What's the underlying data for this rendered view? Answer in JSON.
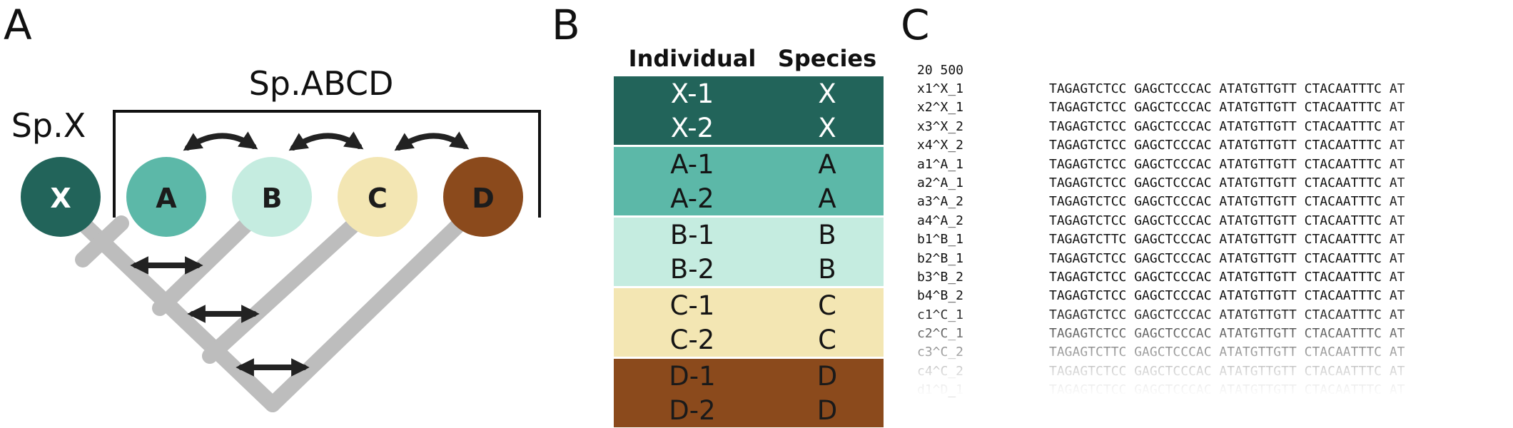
{
  "panels": {
    "a": {
      "letter": "A"
    },
    "b": {
      "letter": "B"
    },
    "c": {
      "letter": "C"
    }
  },
  "tree": {
    "outgroup_label": "Sp.X",
    "ingroup_label": "Sp.ABCD",
    "nodes": [
      {
        "label": "X",
        "color": "#22645a",
        "text_color": "#ffffff"
      },
      {
        "label": "A",
        "color": "#5cb8a8",
        "text_color": "#1c1c1c"
      },
      {
        "label": "B",
        "color": "#c5ece0",
        "text_color": "#1c1c1c"
      },
      {
        "label": "C",
        "color": "#f3e6b3",
        "text_color": "#1c1c1c"
      },
      {
        "label": "D",
        "color": "#8b4a1c",
        "text_color": "#1c1c1c"
      }
    ],
    "branch_color": "#bdbdbd"
  },
  "table": {
    "headers": {
      "individual": "Individual",
      "species": "Species"
    },
    "groups": [
      {
        "color": "#22645a",
        "rows": [
          {
            "individual": "X-1",
            "species": "X"
          },
          {
            "individual": "X-2",
            "species": "X"
          }
        ]
      },
      {
        "color": "#5cb8a8",
        "rows": [
          {
            "individual": "A-1",
            "species": "A"
          },
          {
            "individual": "A-2",
            "species": "A"
          }
        ]
      },
      {
        "color": "#c5ece0",
        "rows": [
          {
            "individual": "B-1",
            "species": "B"
          },
          {
            "individual": "B-2",
            "species": "B"
          }
        ]
      },
      {
        "color": "#f3e6b3",
        "rows": [
          {
            "individual": "C-1",
            "species": "C"
          },
          {
            "individual": "C-2",
            "species": "C"
          }
        ]
      },
      {
        "color": "#8b4a1c",
        "rows": [
          {
            "individual": "D-1",
            "species": "D"
          },
          {
            "individual": "D-2",
            "species": "D"
          }
        ]
      }
    ]
  },
  "alignment": {
    "header": "20 500",
    "rows": [
      {
        "name": "x1^X_1",
        "seq": "TAGAGTCTCC GAGCTCCCAC ATATGTTGTT CTACAATTTC AT"
      },
      {
        "name": "x2^X_1",
        "seq": "TAGAGTCTCC GAGCTCCCAC ATATGTTGTT CTACAATTTC AT"
      },
      {
        "name": "x3^X_2",
        "seq": "TAGAGTCTCC GAGCTCCCAC ATATGTTGTT CTACAATTTC AT"
      },
      {
        "name": "x4^X_2",
        "seq": "TAGAGTCTCC GAGCTCCCAC ATATGTTGTT CTACAATTTC AT"
      },
      {
        "name": "a1^A_1",
        "seq": "TAGAGTCTCC GAGCTCCCAC ATATGTTGTT CTACAATTTC AT"
      },
      {
        "name": "a2^A_1",
        "seq": "TAGAGTCTCC GAGCTCCCAC ATATGTTGTT CTACAATTTC AT"
      },
      {
        "name": "a3^A_2",
        "seq": "TAGAGTCTCC GAGCTCCCAC ATATGTTGTT CTACAATTTC AT"
      },
      {
        "name": "a4^A_2",
        "seq": "TAGAGTCTCC GAGCTCCCAC ATATGTTGTT CTACAATTTC AT"
      },
      {
        "name": "b1^B_1",
        "seq": "TAGAGTCTTC GAGCTCCCAC ATATGTTGTT CTACAATTTC AT"
      },
      {
        "name": "b2^B_1",
        "seq": "TAGAGTCTCC GAGCTCCCAC ATATGTTGTT CTACAATTTC AT"
      },
      {
        "name": "b3^B_2",
        "seq": "TAGAGTCTCC GAGCTCCCAC ATATGTTGTT CTACAATTTC AT"
      },
      {
        "name": "b4^B_2",
        "seq": "TAGAGTCTCC GAGCTCCCAC ATATGTTGTT CTACAATTTC AT"
      },
      {
        "name": "c1^C_1",
        "seq": "TAGAGTCTCC GAGCTCCCAC ATATGTTGTT CTACAATTTC AT"
      },
      {
        "name": "c2^C_1",
        "seq": "TAGAGTCTCC GAGCTCCCAC ATATGTTGTT CTACAATTTC AT"
      },
      {
        "name": "c3^C_2",
        "seq": "TAGAGTCTTC GAGCTCCCAC ATATGTTGTT CTACAATTTC AT"
      },
      {
        "name": "c4^C_2",
        "seq": "TAGAGTCTCC GAGCTCCCAC ATATGTTGTT CTACAATTTC AT"
      },
      {
        "name": "d1^D_1",
        "seq": "TAGAGTCTCC GAGCTCCCAC ATATGTTGTT CTACAATTTC AT"
      }
    ]
  }
}
